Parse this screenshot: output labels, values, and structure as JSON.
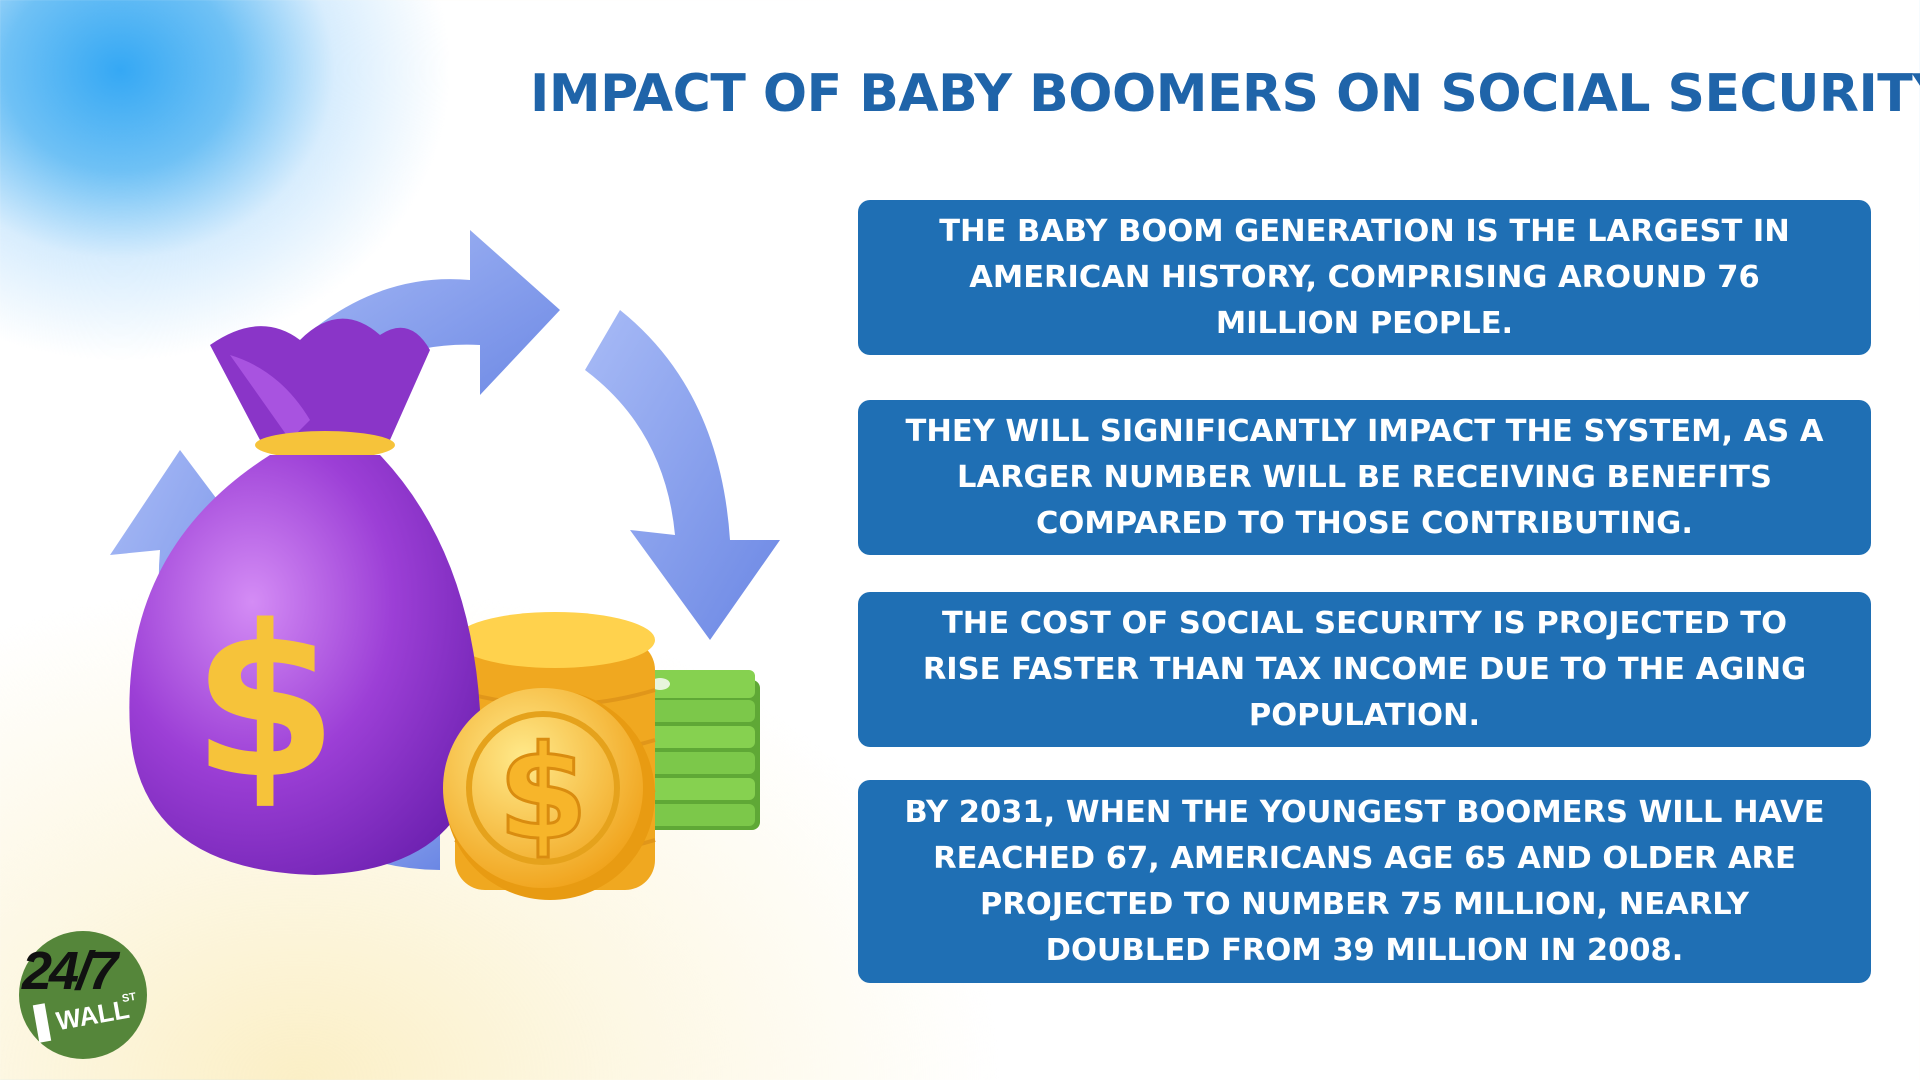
{
  "title": "IMPACT OF BABY BOOMERS ON SOCIAL SECURITY",
  "facts": [
    {
      "lines": [
        "THE BABY BOOM GENERATION IS THE LARGEST IN",
        "AMERICAN HISTORY, COMPRISING AROUND 76",
        "MILLION PEOPLE."
      ]
    },
    {
      "lines": [
        "THEY WILL SIGNIFICANTLY IMPACT THE SYSTEM, AS A",
        "LARGER NUMBER WILL BE RECEIVING BENEFITS",
        "COMPARED TO THOSE CONTRIBUTING."
      ]
    },
    {
      "lines": [
        "THE COST OF SOCIAL SECURITY IS PROJECTED TO",
        "RISE FASTER THAN TAX INCOME DUE TO THE AGING",
        "POPULATION."
      ]
    },
    {
      "lines": [
        "BY 2031, WHEN THE YOUNGEST BOOMERS WILL HAVE",
        "REACHED 67, AMERICANS AGE 65 AND OLDER ARE",
        "PROJECTED TO NUMBER 75 MILLION, NEARLY",
        "DOUBLED FROM 39 MILLION IN 2008."
      ]
    }
  ],
  "illustration": {
    "bag_symbol": "$",
    "coin_symbol": "$",
    "icons": [
      "cycle-arrows-icon",
      "money-bag-icon",
      "coin-stack-icon",
      "cash-stack-icon"
    ]
  },
  "logo": {
    "number": "24/7",
    "name": "WALL",
    "suffix": "ST"
  },
  "colors": {
    "title": "#1f64a9",
    "card_background": "#1f6fb4",
    "card_text": "#ffffff",
    "arrow": "#7f9cec",
    "bag": "#9a3fd4",
    "gold": "#f6c33a",
    "cash": "#7cc84a",
    "logo_background": "#55863a"
  }
}
